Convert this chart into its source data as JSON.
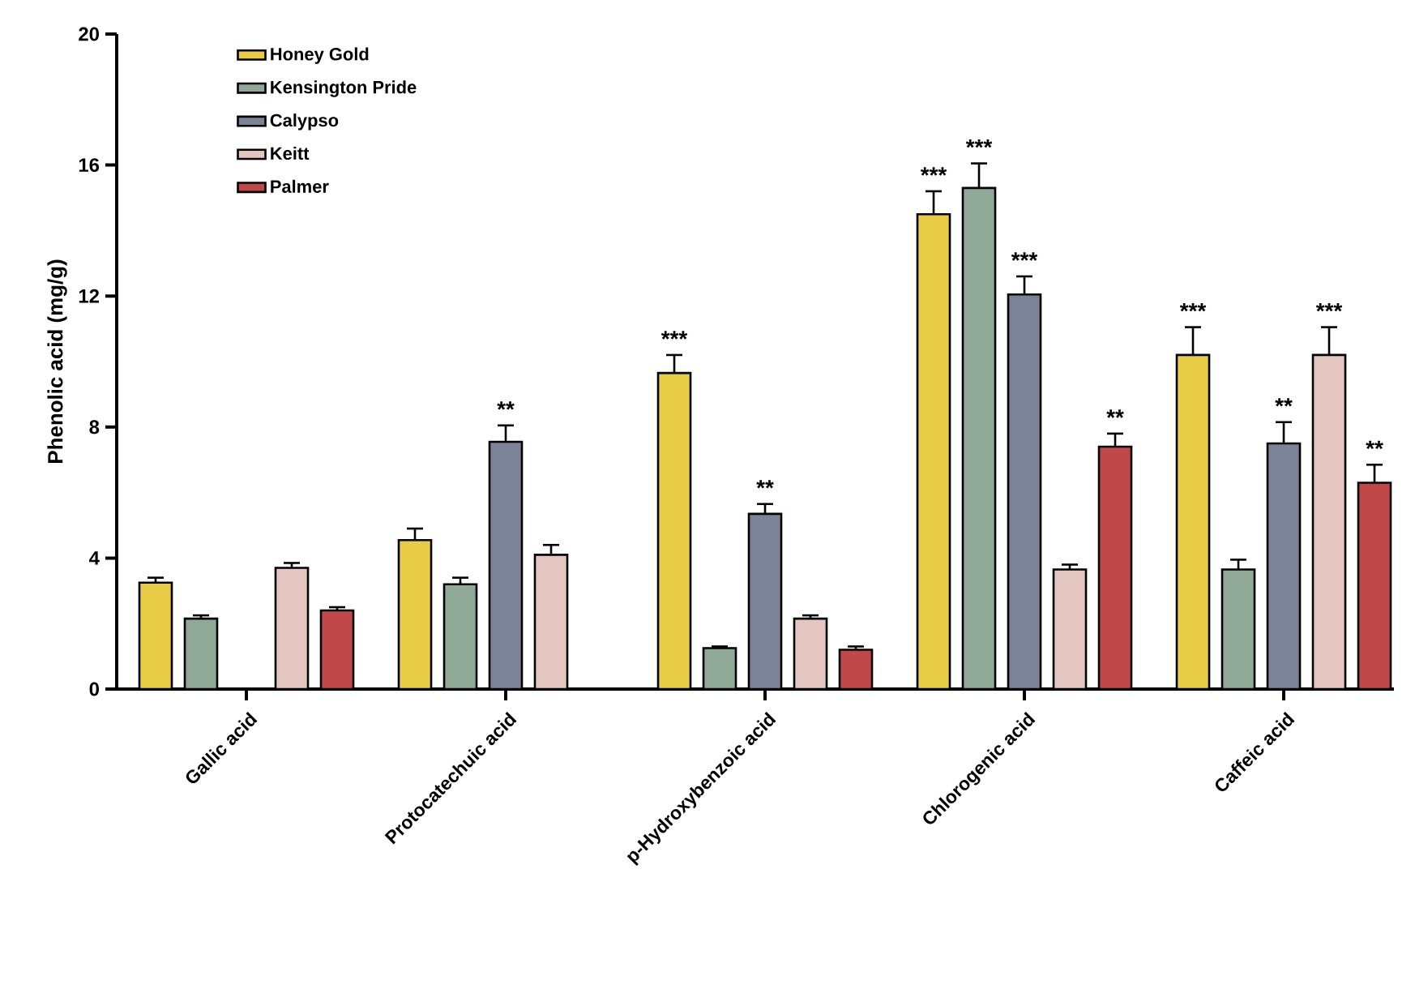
{
  "chart_data": {
    "type": "bar",
    "ylabel": "Phenolic acid (mg/g)",
    "categories": [
      "Gallic acid",
      "Protocatechuic acid",
      "p-Hydroxybenzoic acid",
      "Chlorogenic acid",
      "Caffeic acid"
    ],
    "series": [
      {
        "name": "Honey Gold",
        "color": "#e8cc45",
        "values": [
          3.25,
          4.55,
          9.65,
          14.5,
          10.2
        ],
        "errors": [
          [
            3.25,
            3.4
          ],
          [
            4.55,
            4.9
          ],
          [
            9.65,
            10.2
          ],
          [
            14.5,
            15.2
          ],
          [
            10.2,
            11.05
          ]
        ],
        "value_labels": [
          null,
          null,
          "***",
          "***",
          "***"
        ]
      },
      {
        "name": "Kensington Pride",
        "color": "#8fa898",
        "values": [
          2.15,
          3.2,
          1.25,
          15.3,
          3.65
        ],
        "errors": [
          [
            2.15,
            2.25
          ],
          [
            3.2,
            3.4
          ],
          [
            1.25,
            1.3
          ],
          [
            15.3,
            16.05
          ],
          [
            3.65,
            3.95
          ]
        ],
        "value_labels": [
          null,
          null,
          null,
          "***",
          null
        ]
      },
      {
        "name": "Calypso",
        "color": "#7b8496",
        "values": [
          null,
          7.55,
          5.35,
          12.05,
          7.5
        ],
        "errors": [
          null,
          [
            7.55,
            8.05
          ],
          [
            5.35,
            5.65
          ],
          [
            12.05,
            12.6
          ],
          [
            7.5,
            8.15
          ]
        ],
        "value_labels": [
          null,
          "**",
          "**",
          "***",
          "**"
        ]
      },
      {
        "name": "Keitt",
        "color": "#e4c6c0",
        "values": [
          3.7,
          4.1,
          2.15,
          3.65,
          10.2
        ],
        "errors": [
          [
            3.7,
            3.85
          ],
          [
            4.1,
            4.4
          ],
          [
            2.15,
            2.25
          ],
          [
            3.65,
            3.8
          ],
          [
            10.2,
            11.05
          ]
        ],
        "value_labels": [
          null,
          null,
          null,
          null,
          "***"
        ]
      },
      {
        "name": "Palmer",
        "color": "#c04848",
        "values": [
          2.4,
          null,
          1.2,
          7.4,
          6.3
        ],
        "errors": [
          [
            2.4,
            2.5
          ],
          null,
          [
            1.2,
            1.3
          ],
          [
            7.4,
            7.8
          ],
          [
            6.3,
            6.85
          ]
        ],
        "value_labels": [
          null,
          null,
          null,
          "**",
          "**"
        ]
      }
    ],
    "ylim": [
      0,
      20
    ],
    "yticks": [
      0,
      4,
      8,
      12,
      16,
      20
    ],
    "legend": "top left"
  }
}
